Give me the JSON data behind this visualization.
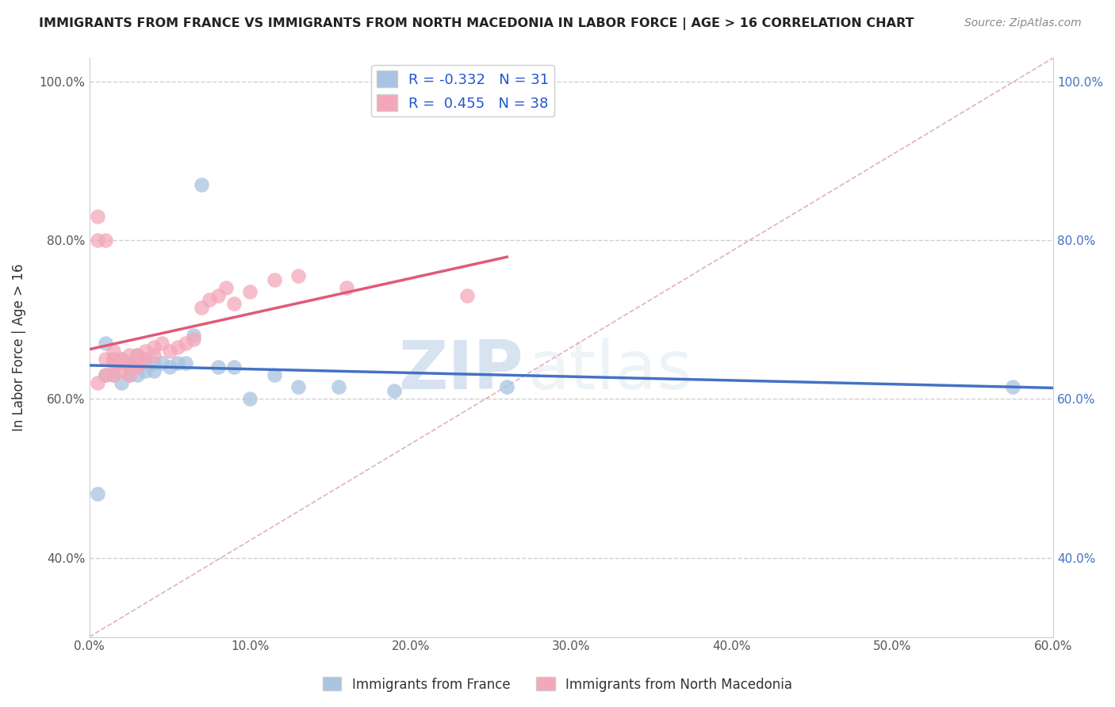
{
  "title": "IMMIGRANTS FROM FRANCE VS IMMIGRANTS FROM NORTH MACEDONIA IN LABOR FORCE | AGE > 16 CORRELATION CHART",
  "source": "Source: ZipAtlas.com",
  "ylabel": "In Labor Force | Age > 16",
  "legend_label_france": "Immigrants from France",
  "legend_label_macedonia": "Immigrants from North Macedonia",
  "france_R": -0.332,
  "france_N": 31,
  "macedonia_R": 0.455,
  "macedonia_N": 38,
  "xlim": [
    0.0,
    0.6
  ],
  "ylim": [
    0.3,
    1.03
  ],
  "xticks": [
    0.0,
    0.1,
    0.2,
    0.3,
    0.4,
    0.5,
    0.6
  ],
  "yticks": [
    0.4,
    0.6,
    0.8,
    1.0
  ],
  "color_france": "#a8c4e0",
  "color_macedonia": "#f4a7b9",
  "line_color_france": "#4472c4",
  "line_color_macedonia": "#e05a78",
  "diag_color": "#d8a0a8",
  "watermark_zip": "ZIP",
  "watermark_atlas": "atlas",
  "france_points_x": [
    0.005,
    0.01,
    0.01,
    0.015,
    0.015,
    0.02,
    0.02,
    0.025,
    0.025,
    0.03,
    0.03,
    0.03,
    0.035,
    0.035,
    0.04,
    0.04,
    0.045,
    0.05,
    0.055,
    0.06,
    0.065,
    0.07,
    0.08,
    0.09,
    0.1,
    0.115,
    0.13,
    0.155,
    0.19,
    0.26,
    0.575
  ],
  "france_points_y": [
    0.48,
    0.63,
    0.67,
    0.63,
    0.65,
    0.62,
    0.65,
    0.63,
    0.645,
    0.63,
    0.645,
    0.655,
    0.635,
    0.645,
    0.635,
    0.645,
    0.645,
    0.64,
    0.645,
    0.645,
    0.68,
    0.87,
    0.64,
    0.64,
    0.6,
    0.63,
    0.615,
    0.615,
    0.61,
    0.615,
    0.615
  ],
  "macedonia_points_x": [
    0.005,
    0.005,
    0.005,
    0.01,
    0.01,
    0.01,
    0.015,
    0.015,
    0.015,
    0.015,
    0.02,
    0.02,
    0.02,
    0.025,
    0.025,
    0.025,
    0.03,
    0.03,
    0.03,
    0.035,
    0.035,
    0.04,
    0.04,
    0.045,
    0.05,
    0.055,
    0.06,
    0.065,
    0.07,
    0.075,
    0.08,
    0.085,
    0.09,
    0.1,
    0.115,
    0.13,
    0.16,
    0.235
  ],
  "macedonia_points_y": [
    0.62,
    0.8,
    0.83,
    0.63,
    0.65,
    0.8,
    0.63,
    0.645,
    0.65,
    0.66,
    0.635,
    0.645,
    0.65,
    0.63,
    0.645,
    0.655,
    0.64,
    0.645,
    0.655,
    0.65,
    0.66,
    0.655,
    0.665,
    0.67,
    0.66,
    0.665,
    0.67,
    0.675,
    0.715,
    0.725,
    0.73,
    0.74,
    0.72,
    0.735,
    0.75,
    0.755,
    0.74,
    0.73
  ]
}
